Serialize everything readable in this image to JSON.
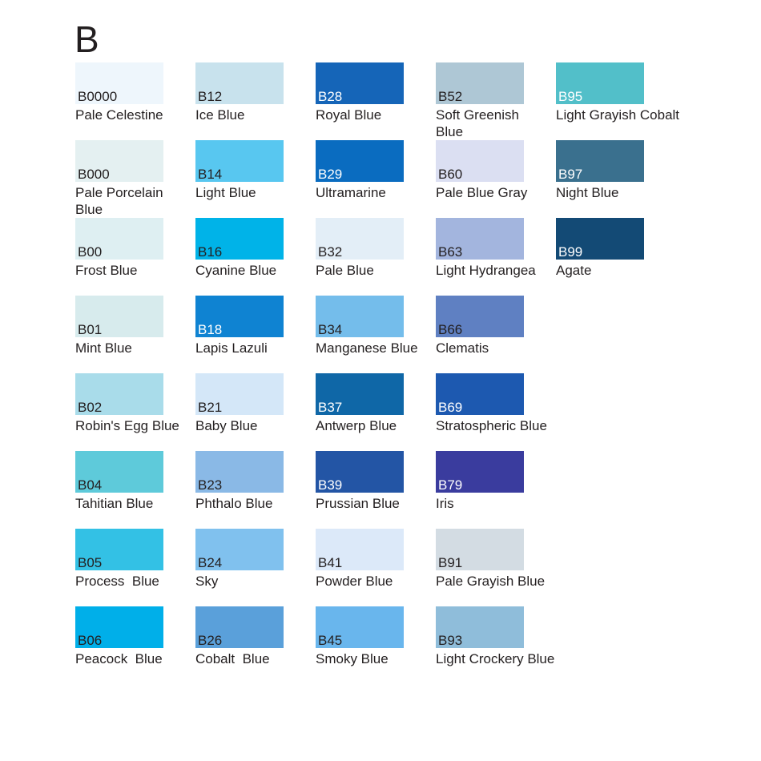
{
  "chart_data": {
    "type": "table",
    "title": "B",
    "columns": [
      "code",
      "name",
      "hex"
    ],
    "rows": [
      {
        "items": [
          {
            "code": "B0000",
            "name": "Pale Celestine",
            "hex": "#eef6fc",
            "code_color": "#231f20"
          },
          {
            "code": "B12",
            "name": "Ice Blue",
            "hex": "#c8e2ed",
            "code_color": "#231f20"
          },
          {
            "code": "B28",
            "name": "Royal Blue",
            "hex": "#1565b8",
            "code_color": "#ffffff"
          },
          {
            "code": "B52",
            "name": "Soft Greenish\nBlue",
            "hex": "#aec7d5",
            "code_color": "#231f20"
          },
          {
            "code": "B95",
            "name": "Light Grayish Cobalt",
            "hex": "#52bfc9",
            "code_color": "#ffffff"
          }
        ]
      },
      {
        "items": [
          {
            "code": "B000",
            "name": "Pale Porcelain\nBlue",
            "hex": "#e4f0f1",
            "code_color": "#231f20"
          },
          {
            "code": "B14",
            "name": "Light Blue",
            "hex": "#58c7f0",
            "code_color": "#231f20"
          },
          {
            "code": "B29",
            "name": "Ultramarine",
            "hex": "#0a6cc0",
            "code_color": "#ffffff"
          },
          {
            "code": "B60",
            "name": "Pale Blue Gray",
            "hex": "#dbdff2",
            "code_color": "#231f20"
          },
          {
            "code": "B97",
            "name": "Night Blue",
            "hex": "#3a708e",
            "code_color": "#ffffff"
          }
        ]
      },
      {
        "items": [
          {
            "code": "B00",
            "name": "Frost Blue",
            "hex": "#deeff2",
            "code_color": "#231f20"
          },
          {
            "code": "B16",
            "name": "Cyanine Blue",
            "hex": "#00b3e8",
            "code_color": "#231f20"
          },
          {
            "code": "B32",
            "name": "Pale Blue",
            "hex": "#e3eef7",
            "code_color": "#231f20"
          },
          {
            "code": "B63",
            "name": "Light Hydrangea",
            "hex": "#a3b5de",
            "code_color": "#231f20"
          },
          {
            "code": "B99",
            "name": "Agate",
            "hex": "#134a75",
            "code_color": "#ffffff"
          }
        ]
      },
      {
        "items": [
          {
            "code": "B01",
            "name": "Mint Blue",
            "hex": "#d7ebed",
            "code_color": "#231f20"
          },
          {
            "code": "B18",
            "name": "Lapis Lazuli",
            "hex": "#0f83d2",
            "code_color": "#ffffff"
          },
          {
            "code": "B34",
            "name": "Manganese Blue",
            "hex": "#74bdeb",
            "code_color": "#231f20"
          },
          {
            "code": "B66",
            "name": "Clematis",
            "hex": "#5f80c2",
            "code_color": "#231f20"
          }
        ]
      },
      {
        "items": [
          {
            "code": "B02",
            "name": "Robin's Egg Blue",
            "hex": "#a9dcea",
            "code_color": "#231f20"
          },
          {
            "code": "B21",
            "name": "Baby Blue",
            "hex": "#d4e7f8",
            "code_color": "#231f20"
          },
          {
            "code": "B37",
            "name": "Antwerp Blue",
            "hex": "#0f67a7",
            "code_color": "#ffffff"
          },
          {
            "code": "B69",
            "name": "Stratospheric Blue",
            "hex": "#1d59b0",
            "code_color": "#ffffff"
          }
        ]
      },
      {
        "items": [
          {
            "code": "B04",
            "name": "Tahitian Blue",
            "hex": "#5ecada",
            "code_color": "#231f20"
          },
          {
            "code": "B23",
            "name": "Phthalo Blue",
            "hex": "#8ab9e6",
            "code_color": "#231f20"
          },
          {
            "code": "B39",
            "name": "Prussian Blue",
            "hex": "#2355a5",
            "code_color": "#ffffff"
          },
          {
            "code": "B79",
            "name": "Iris",
            "hex": "#3a3c9e",
            "code_color": "#ffffff"
          }
        ]
      },
      {
        "items": [
          {
            "code": "B05",
            "name": "Process  Blue",
            "hex": "#33c1e5",
            "code_color": "#231f20"
          },
          {
            "code": "B24",
            "name": "Sky",
            "hex": "#80c1ee",
            "code_color": "#231f20"
          },
          {
            "code": "B41",
            "name": "Powder Blue",
            "hex": "#dce9f9",
            "code_color": "#231f20"
          },
          {
            "code": "B91",
            "name": "Pale Grayish Blue",
            "hex": "#d3dce3",
            "code_color": "#231f20"
          }
        ]
      },
      {
        "items": [
          {
            "code": "B06",
            "name": "Peacock  Blue",
            "hex": "#00afe9",
            "code_color": "#231f20"
          },
          {
            "code": "B26",
            "name": "Cobalt  Blue",
            "hex": "#5aa0da",
            "code_color": "#231f20"
          },
          {
            "code": "B45",
            "name": "Smoky Blue",
            "hex": "#69b6ed",
            "code_color": "#231f20"
          },
          {
            "code": "B93",
            "name": "Light Crockery Blue",
            "hex": "#8fbdda",
            "code_color": "#231f20"
          }
        ]
      }
    ]
  }
}
